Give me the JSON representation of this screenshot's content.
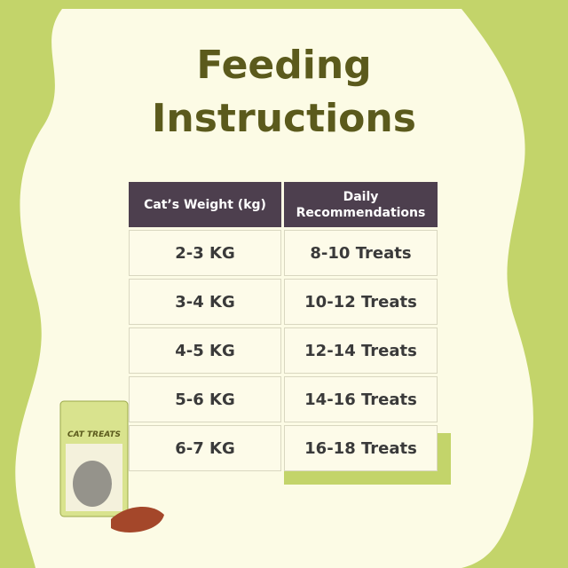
{
  "title": {
    "line1": "Feeding",
    "line2": "Instructions"
  },
  "table": {
    "header": [
      "Cat’s Weight (kg)",
      "Daily Recommendations"
    ],
    "rows": [
      [
        "2-3 KG",
        "8-10 Treats"
      ],
      [
        "3-4 KG",
        "10-12 Treats"
      ],
      [
        "4-5 KG",
        "12-14 Treats"
      ],
      [
        "5-6 KG",
        "14-16 Treats"
      ],
      [
        "6-7 KG",
        "16-18 Treats"
      ]
    ]
  },
  "package": {
    "label": "CAT TREATS"
  }
}
